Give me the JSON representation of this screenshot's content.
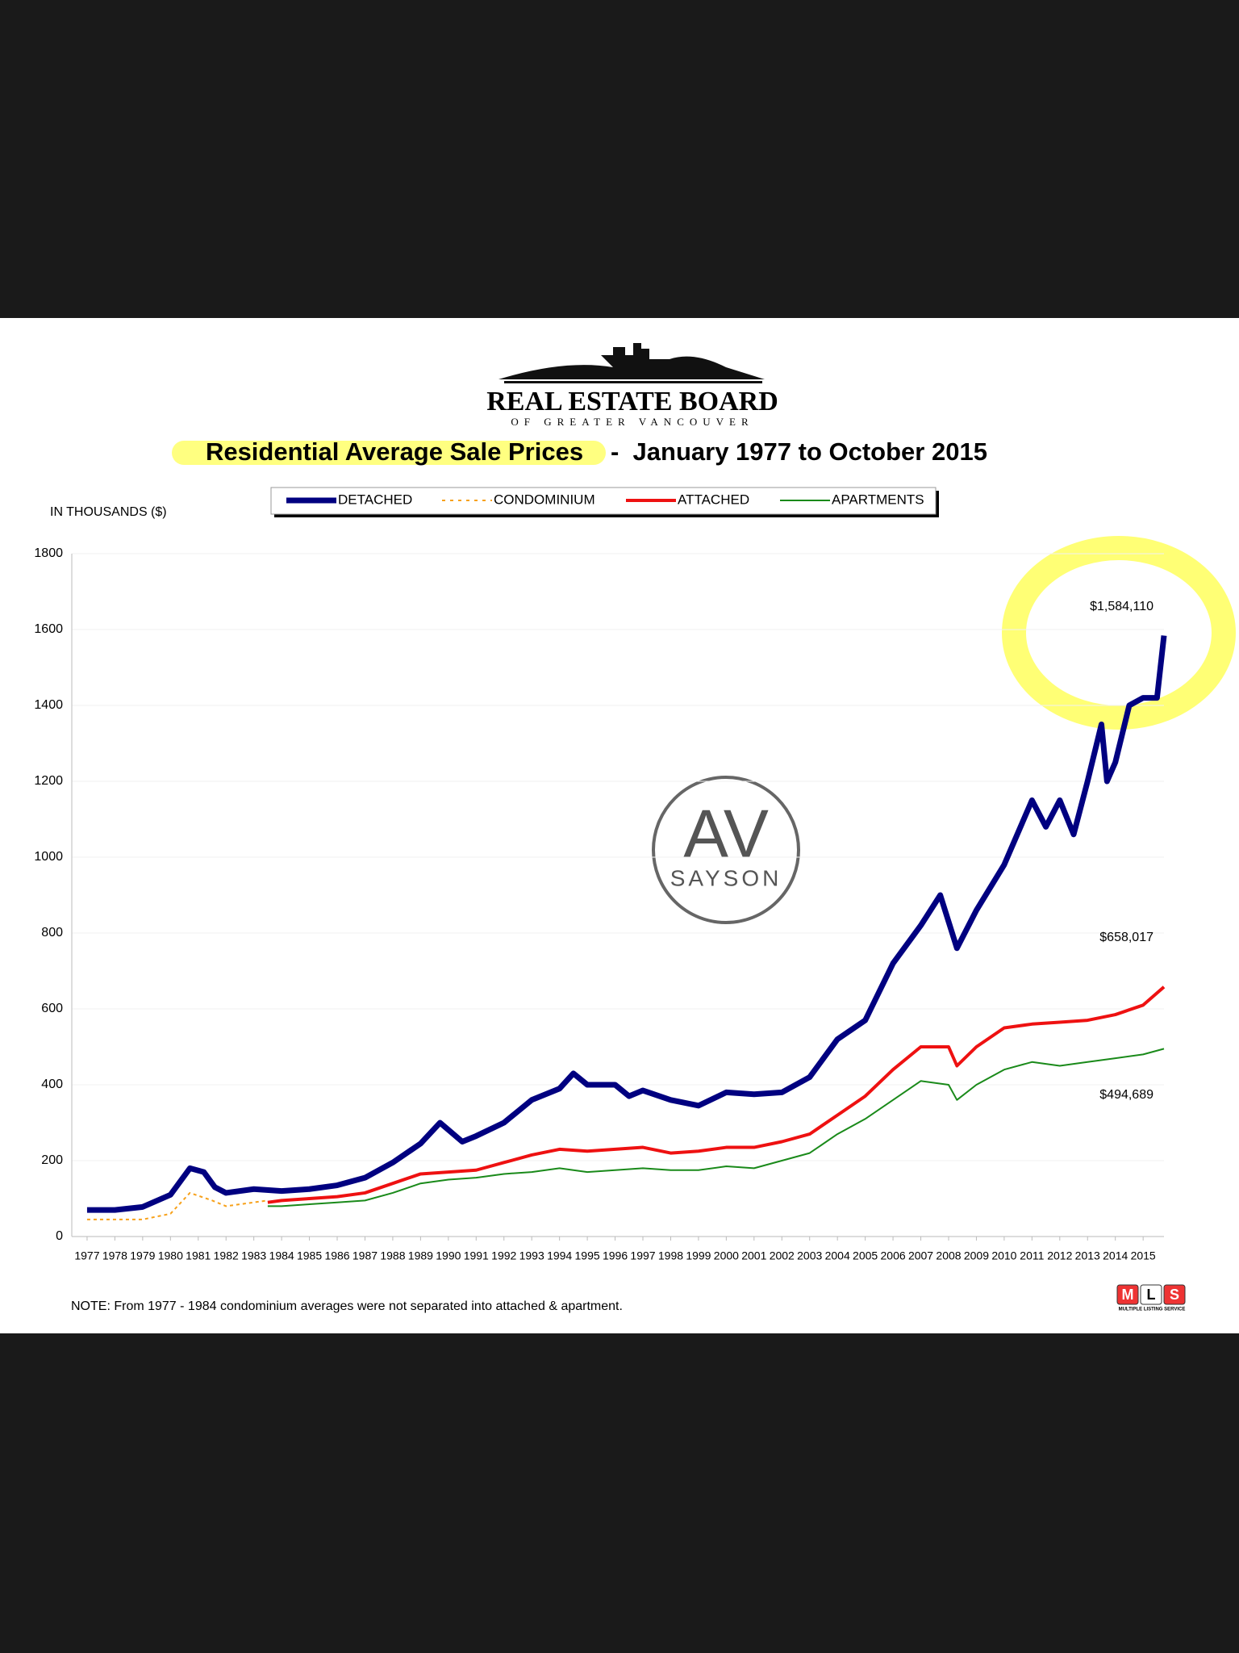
{
  "header": {
    "org": "REAL ESTATE BOARD",
    "org_sub": "OF GREATER VANCOUVER"
  },
  "watermark": {
    "initials": "AV",
    "name": "SAYSON"
  },
  "logo": {
    "letters": [
      "M",
      "L",
      "S"
    ],
    "caption": "MULTIPLE LISTING SERVICE"
  },
  "chart_data": {
    "type": "line",
    "title": "Residential Average Sale Prices",
    "subtitle": "-  January 1977 to October 2015",
    "y_label": "IN THOUSANDS ($)",
    "note": "NOTE:  From 1977 - 1984 condominium averages were not separated into attached & apartment.",
    "annotations": [
      "$1,584,110",
      "$658,017",
      "$494,689"
    ],
    "xlim": [
      1976.45,
      2015.75
    ],
    "xticks": [
      1977,
      1978,
      1979,
      1980,
      1981,
      1982,
      1983,
      1984,
      1985,
      1986,
      1987,
      1988,
      1989,
      1990,
      1991,
      1992,
      1993,
      1994,
      1995,
      1996,
      1997,
      1998,
      1999,
      2000,
      2001,
      2002,
      2003,
      2004,
      2005,
      2006,
      2007,
      2008,
      2009,
      2010,
      2011,
      2012,
      2013,
      2014,
      2015
    ],
    "ylim": [
      0,
      1800
    ],
    "yticks": [
      0,
      200,
      400,
      600,
      800,
      1000,
      1200,
      1400,
      1600,
      1800
    ],
    "grid": true,
    "series": [
      {
        "name": "DETACHED",
        "color": "#000080",
        "x": [
          1977,
          1978,
          1979,
          1980,
          1980.7,
          1981.2,
          1981.6,
          1982,
          1983,
          1984,
          1985,
          1986,
          1987,
          1988,
          1989,
          1989.7,
          1990.5,
          1991,
          1992,
          1993,
          1994,
          1994.5,
          1995,
          1996,
          1996.5,
          1997,
          1998,
          1999,
          2000,
          2001,
          2002,
          2003,
          2004,
          2005,
          2006,
          2007,
          2007.7,
          2008,
          2008.3,
          2009,
          2010,
          2011,
          2011.5,
          2012,
          2012.5,
          2013,
          2013.5,
          2013.7,
          2014,
          2014.5,
          2015,
          2015.5,
          2015.75
        ],
        "values": [
          70,
          70,
          78,
          110,
          180,
          170,
          130,
          115,
          125,
          120,
          125,
          135,
          155,
          195,
          245,
          300,
          250,
          265,
          300,
          360,
          390,
          430,
          400,
          400,
          370,
          385,
          360,
          345,
          380,
          375,
          380,
          420,
          520,
          570,
          720,
          820,
          900,
          830,
          760,
          860,
          980,
          1150,
          1080,
          1150,
          1060,
          1200,
          1350,
          1200,
          1250,
          1400,
          1420,
          1420,
          1584
        ]
      },
      {
        "name": "CONDOMINIUM",
        "color": "#f7a11a",
        "dashed": true,
        "x": [
          1977,
          1978,
          1979,
          1980,
          1980.7,
          1981.5,
          1982,
          1983,
          1983.5
        ],
        "values": [
          45,
          45,
          45,
          60,
          115,
          95,
          80,
          90,
          95
        ]
      },
      {
        "name": "ATTACHED",
        "color": "#ee1111",
        "x": [
          1983.5,
          1984,
          1985,
          1986,
          1987,
          1988,
          1989,
          1990,
          1991,
          1992,
          1993,
          1994,
          1995,
          1996,
          1997,
          1998,
          1999,
          2000,
          2001,
          2002,
          2003,
          2004,
          2005,
          2006,
          2007,
          2008,
          2008.3,
          2009,
          2010,
          2011,
          2012,
          2013,
          2014,
          2015,
          2015.75
        ],
        "values": [
          90,
          95,
          100,
          105,
          115,
          140,
          165,
          170,
          175,
          195,
          215,
          230,
          225,
          230,
          235,
          220,
          225,
          235,
          235,
          250,
          270,
          320,
          370,
          440,
          500,
          500,
          450,
          500,
          550,
          560,
          565,
          570,
          585,
          610,
          658
        ]
      },
      {
        "name": "APARTMENTS",
        "color": "#1a8a1a",
        "x": [
          1983.5,
          1984,
          1985,
          1986,
          1987,
          1988,
          1989,
          1990,
          1991,
          1992,
          1993,
          1994,
          1995,
          1996,
          1997,
          1998,
          1999,
          2000,
          2001,
          2002,
          2003,
          2004,
          2005,
          2006,
          2007,
          2008,
          2008.3,
          2009,
          2010,
          2011,
          2012,
          2013,
          2014,
          2015,
          2015.75
        ],
        "values": [
          80,
          80,
          85,
          90,
          95,
          115,
          140,
          150,
          155,
          165,
          170,
          180,
          170,
          175,
          180,
          175,
          175,
          185,
          180,
          200,
          220,
          270,
          310,
          360,
          410,
          400,
          360,
          400,
          440,
          460,
          450,
          460,
          470,
          480,
          495
        ]
      }
    ]
  }
}
